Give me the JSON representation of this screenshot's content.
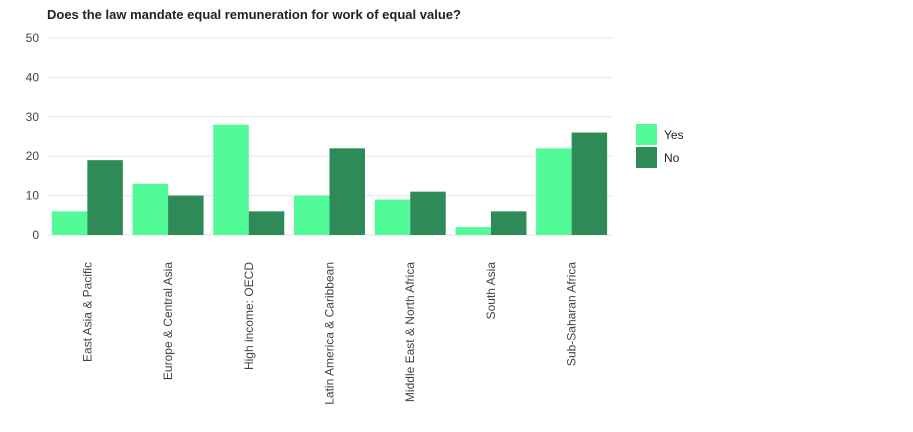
{
  "chart_data": {
    "type": "bar",
    "title": "Does the law mandate equal remuneration for work of equal value?",
    "xlabel": "",
    "ylabel": "",
    "ylim": [
      0,
      50
    ],
    "yticks": [
      0,
      10,
      20,
      30,
      40,
      50
    ],
    "categories": [
      "East Asia & Pacific",
      "Europe & Central Asia",
      "High income: OECD",
      "Latin America & Caribbean",
      "Middle East & North Africa",
      "South Asia",
      "Sub-Saharan Africa"
    ],
    "series": [
      {
        "name": "Yes",
        "color": "#52fa98",
        "values": [
          6,
          13,
          28,
          10,
          9,
          2,
          22
        ]
      },
      {
        "name": "No",
        "color": "#2e8b57",
        "values": [
          19,
          10,
          6,
          22,
          11,
          6,
          26
        ]
      }
    ],
    "grid": true,
    "legend_position": "right"
  }
}
